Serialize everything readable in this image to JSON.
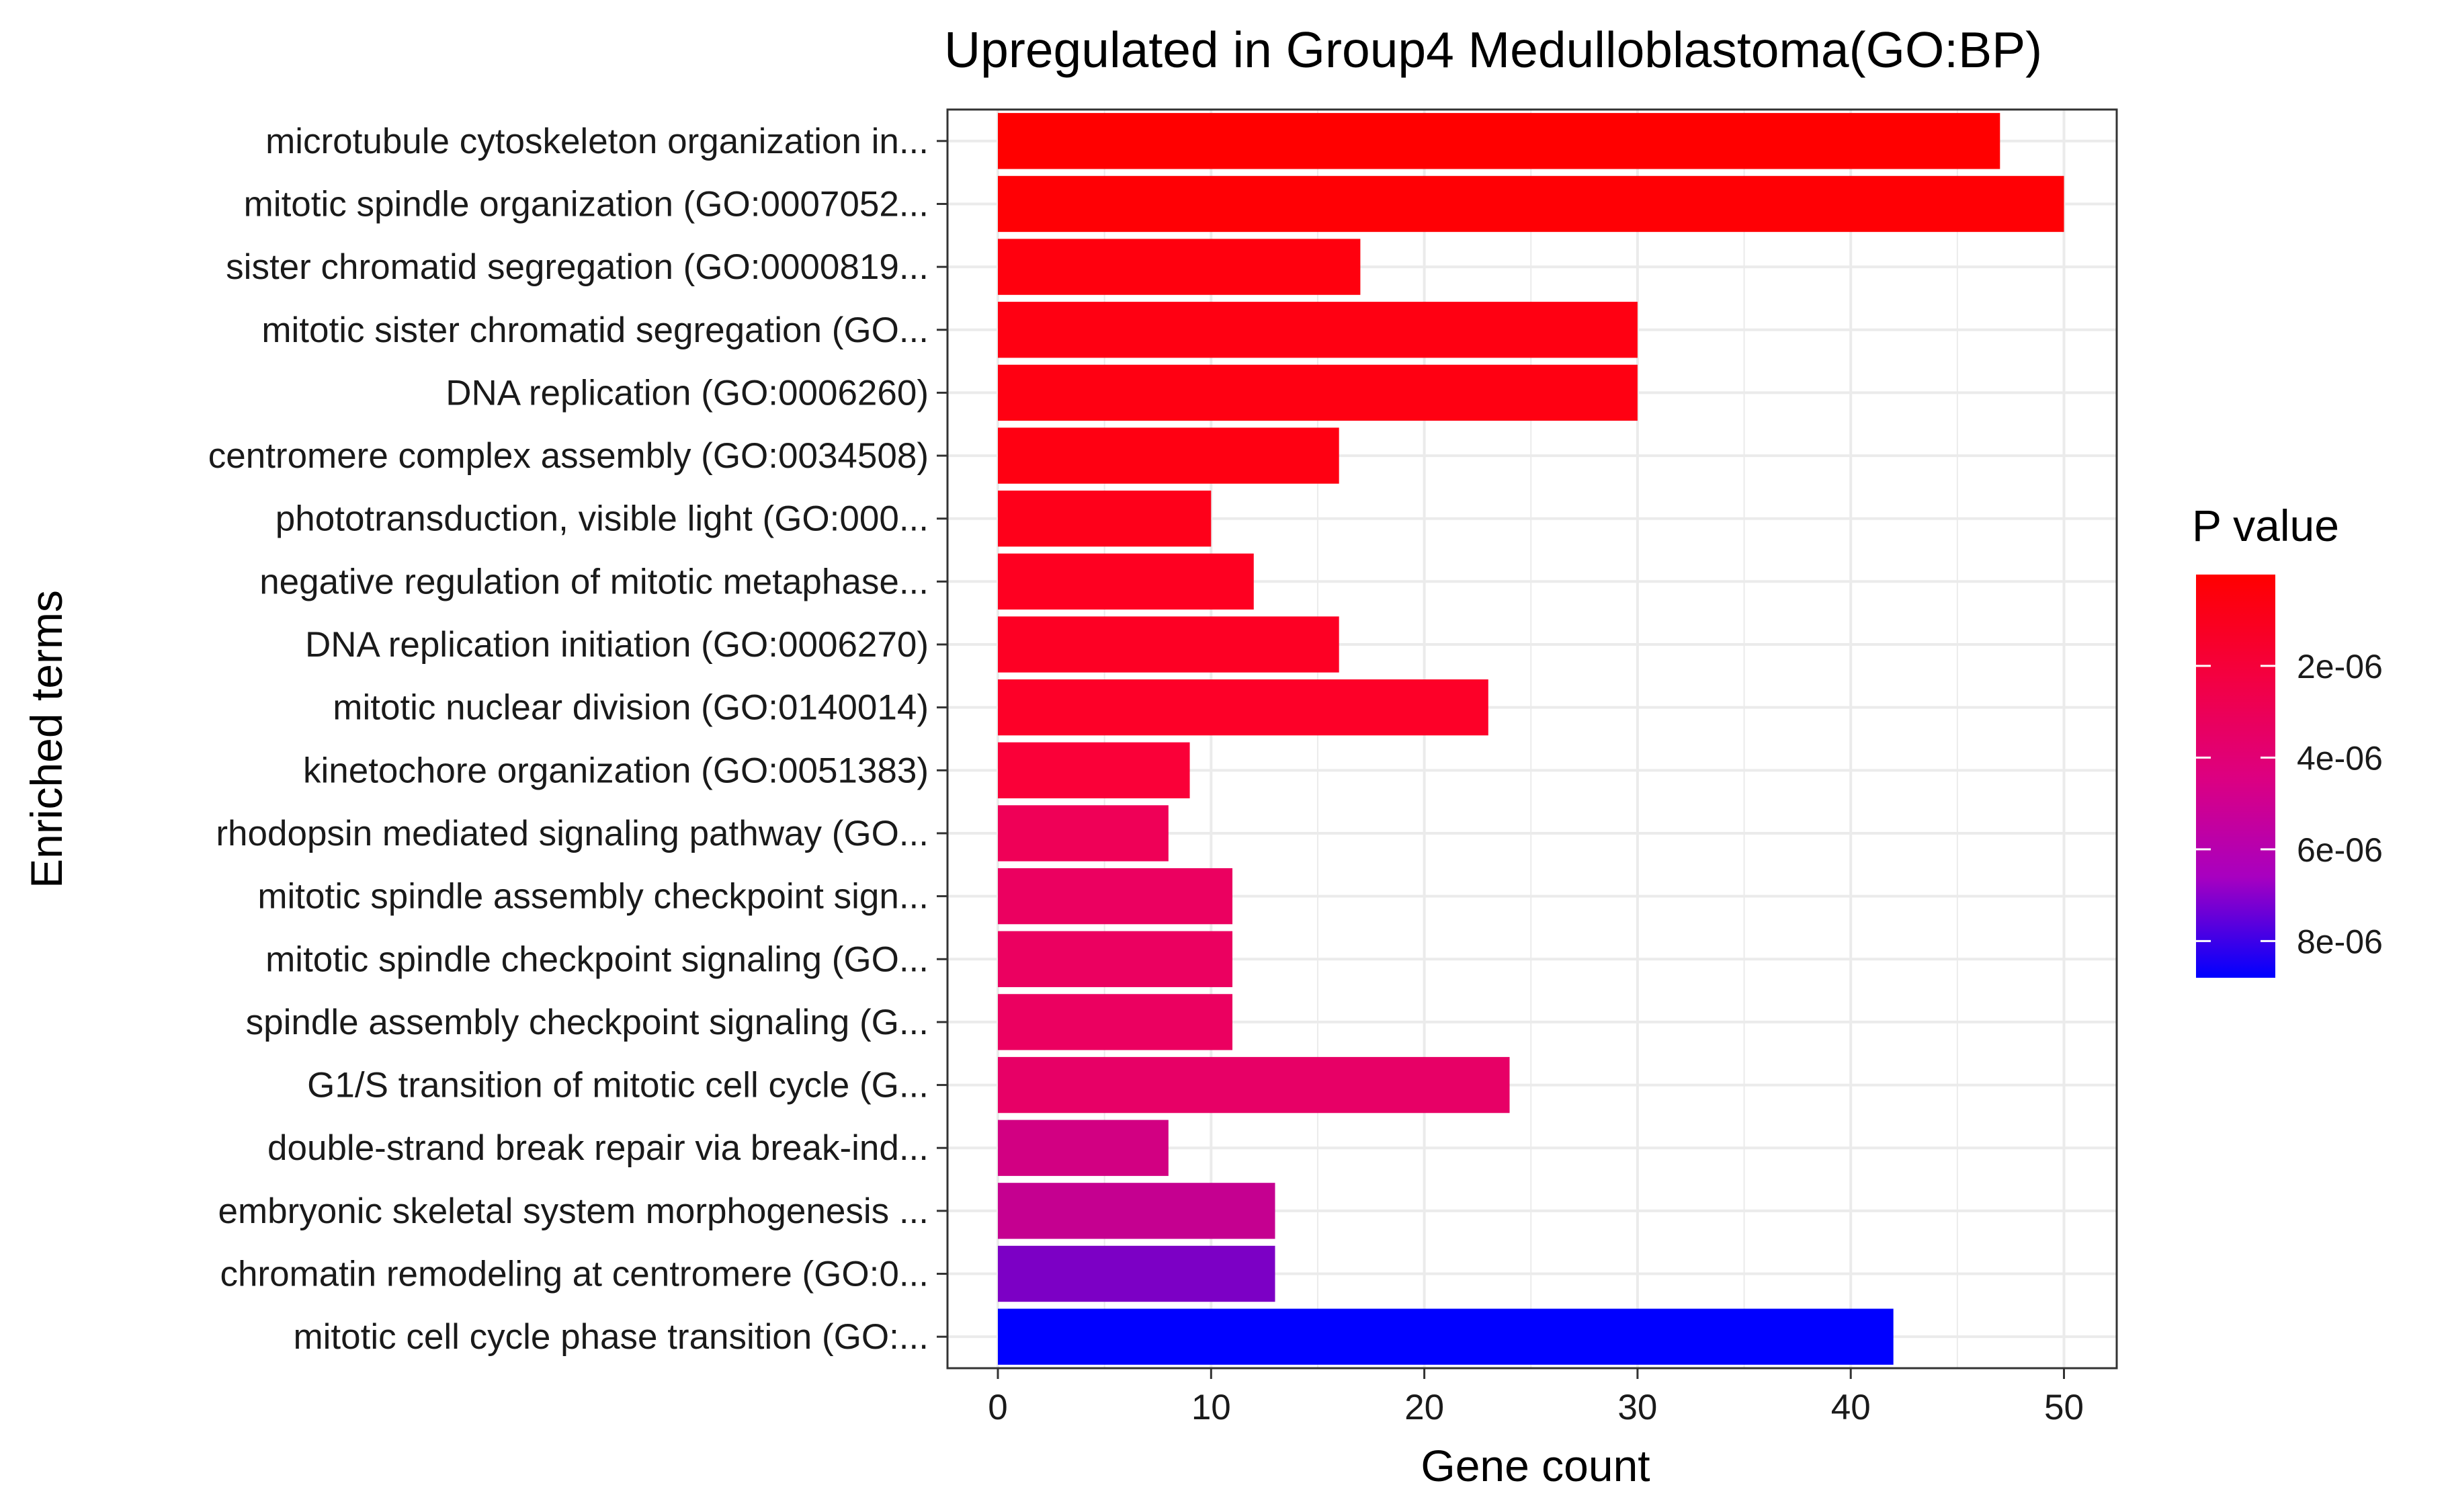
{
  "chart_data": {
    "type": "bar",
    "orientation": "horizontal",
    "title": "Upregulated in Group4 Medulloblastoma(GO:BP)",
    "xlabel": "Gene count",
    "ylabel": "Enriched terms",
    "xlim": [
      0,
      52
    ],
    "xticks": [
      0,
      10,
      20,
      30,
      40,
      50
    ],
    "grid": true,
    "legend": {
      "title": "P value",
      "placement": "right",
      "ticks": [
        2e-06,
        4e-06,
        6e-06,
        8e-06
      ],
      "tick_labels": [
        "2e-06",
        "4e-06",
        "6e-06",
        "8e-06"
      ],
      "range": [
        1e-08,
        8.8e-06
      ],
      "color_low": "#ff0000",
      "color_high": "#0000ff"
    },
    "categories": [
      "microtubule cytoskeleton organization in...",
      "mitotic spindle organization (GO:0007052...",
      "sister chromatid segregation (GO:0000819...",
      "mitotic sister chromatid segregation (GO...",
      "DNA replication (GO:0006260)",
      "centromere complex assembly (GO:0034508)",
      "phototransduction, visible light (GO:000...",
      "negative regulation of mitotic metaphase...",
      "DNA replication initiation (GO:0006270)",
      "mitotic nuclear division (GO:0140014)",
      "kinetochore organization (GO:0051383)",
      "rhodopsin mediated signaling pathway (GO...",
      "mitotic spindle assembly checkpoint sign...",
      "mitotic spindle checkpoint signaling (GO...",
      "spindle assembly checkpoint signaling (G...",
      "G1/S transition of mitotic cell cycle (G...",
      "double-strand break repair via break-ind...",
      "embryonic skeletal system morphogenesis ...",
      "chromatin remodeling at centromere (GO:0...",
      "mitotic cell cycle phase transition (GO:..."
    ],
    "values": [
      47,
      50,
      17,
      30,
      30,
      16,
      10,
      12,
      16,
      23,
      9,
      8,
      11,
      11,
      11,
      24,
      8,
      13,
      13,
      42
    ],
    "p_values": [
      1e-08,
      1e-07,
      3e-07,
      4e-07,
      4e-07,
      4e-07,
      6e-07,
      8e-07,
      9e-07,
      1e-06,
      1.5e-06,
      2.5e-06,
      2.8e-06,
      2.8e-06,
      2.8e-06,
      3e-06,
      4e-06,
      4.5e-06,
      6.5e-06,
      8.8e-06
    ]
  }
}
